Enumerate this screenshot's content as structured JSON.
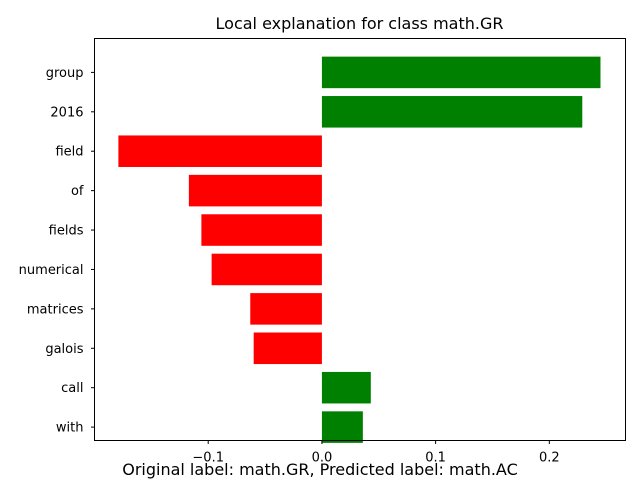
{
  "chart_data": {
    "type": "bar",
    "orientation": "horizontal",
    "title": "Local explanation for class math.GR",
    "categories": [
      "group",
      "2016",
      "field",
      "of",
      "fields",
      "numerical",
      "matrices",
      "galois",
      "call",
      "with"
    ],
    "values": [
      0.245,
      0.229,
      -0.179,
      -0.117,
      -0.106,
      -0.097,
      -0.063,
      -0.06,
      0.043,
      0.036
    ],
    "positive_color": "#008000",
    "negative_color": "#ff0000",
    "xlim": [
      -0.2,
      0.267
    ],
    "xticks": [
      -0.1,
      0.0,
      0.1,
      0.2
    ],
    "xtick_labels": [
      "−0.1",
      "0.0",
      "0.1",
      "0.2"
    ],
    "grid": false
  },
  "caption": "Original label: math.GR, Predicted label: math.AC"
}
